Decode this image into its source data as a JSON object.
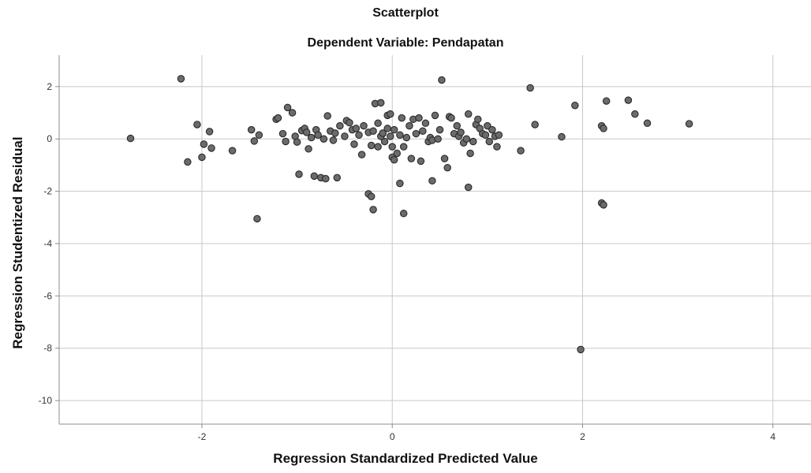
{
  "chart_data": {
    "type": "scatter",
    "title": "Scatterplot",
    "subtitle": "Dependent Variable: Pendapatan",
    "xlabel": "Regression Standardized Predicted Value",
    "ylabel": "Regression Studentized Residual",
    "xlim": [
      -3.5,
      4.4
    ],
    "ylim": [
      -10.9,
      3.2
    ],
    "xticks": [
      -2,
      0,
      2,
      4
    ],
    "yticks": [
      2,
      0,
      -2,
      -4,
      -6,
      -8,
      -10
    ],
    "xtick_labels": [
      "-2",
      "0",
      "2",
      "4"
    ],
    "ytick_labels": [
      "2",
      "0",
      "-2",
      "-4",
      "-6",
      "-8",
      "-10"
    ],
    "grid": true,
    "colors": {
      "marker_fill": "#6b6b6b",
      "marker_edge": "#2a2a2a",
      "grid": "#c8c8c8",
      "axis": "#8c8c8c"
    },
    "points": [
      [
        -2.75,
        0.02
      ],
      [
        -2.22,
        2.3
      ],
      [
        -2.15,
        -0.88
      ],
      [
        -2.05,
        0.55
      ],
      [
        -2.0,
        -0.7
      ],
      [
        -1.98,
        -0.2
      ],
      [
        -1.92,
        0.28
      ],
      [
        -1.9,
        -0.35
      ],
      [
        -1.68,
        -0.45
      ],
      [
        -1.48,
        0.35
      ],
      [
        -1.45,
        -0.08
      ],
      [
        -1.4,
        0.15
      ],
      [
        -1.42,
        -3.05
      ],
      [
        -1.22,
        0.75
      ],
      [
        -1.2,
        0.8
      ],
      [
        -1.15,
        0.2
      ],
      [
        -1.12,
        -0.1
      ],
      [
        -1.1,
        1.2
      ],
      [
        -1.05,
        1.0
      ],
      [
        -1.02,
        0.1
      ],
      [
        -1.0,
        -0.12
      ],
      [
        -0.98,
        -1.35
      ],
      [
        -0.95,
        0.32
      ],
      [
        -0.92,
        0.4
      ],
      [
        -0.9,
        0.25
      ],
      [
        -0.88,
        -0.38
      ],
      [
        -0.85,
        0.05
      ],
      [
        -0.82,
        -1.42
      ],
      [
        -0.8,
        0.35
      ],
      [
        -0.78,
        0.15
      ],
      [
        -0.75,
        -1.48
      ],
      [
        -0.72,
        0.0
      ],
      [
        -0.7,
        -1.52
      ],
      [
        -0.68,
        0.88
      ],
      [
        -0.65,
        0.3
      ],
      [
        -0.62,
        -0.05
      ],
      [
        -0.6,
        0.22
      ],
      [
        -0.58,
        -1.48
      ],
      [
        -0.55,
        0.5
      ],
      [
        -0.5,
        0.1
      ],
      [
        -0.48,
        0.7
      ],
      [
        -0.45,
        0.62
      ],
      [
        -0.42,
        0.35
      ],
      [
        -0.4,
        -0.2
      ],
      [
        -0.38,
        0.4
      ],
      [
        -0.35,
        0.15
      ],
      [
        -0.32,
        -0.6
      ],
      [
        -0.3,
        0.5
      ],
      [
        -0.25,
        0.25
      ],
      [
        -0.22,
        -0.25
      ],
      [
        -0.2,
        0.3
      ],
      [
        -0.18,
        1.35
      ],
      [
        -0.15,
        0.6
      ],
      [
        -0.12,
        1.38
      ],
      [
        -0.1,
        0.2
      ],
      [
        -0.08,
        -0.1
      ],
      [
        -0.05,
        0.4
      ],
      [
        -0.02,
        0.1
      ],
      [
        0.0,
        -0.3
      ],
      [
        0.02,
        0.35
      ],
      [
        -0.25,
        -2.1
      ],
      [
        -0.22,
        -2.2
      ],
      [
        -0.2,
        -2.7
      ],
      [
        -0.15,
        -0.3
      ],
      [
        -0.12,
        0.1
      ],
      [
        -0.1,
        0.22
      ],
      [
        -0.05,
        0.9
      ],
      [
        -0.02,
        0.95
      ],
      [
        0.0,
        -0.7
      ],
      [
        0.02,
        -0.8
      ],
      [
        0.05,
        -0.55
      ],
      [
        0.08,
        0.15
      ],
      [
        0.1,
        0.8
      ],
      [
        0.12,
        -0.3
      ],
      [
        0.15,
        0.05
      ],
      [
        0.18,
        0.5
      ],
      [
        0.2,
        -0.75
      ],
      [
        0.22,
        0.75
      ],
      [
        0.25,
        0.2
      ],
      [
        0.28,
        0.8
      ],
      [
        0.3,
        -0.85
      ],
      [
        0.32,
        0.3
      ],
      [
        0.35,
        0.6
      ],
      [
        0.38,
        -0.1
      ],
      [
        0.4,
        0.05
      ],
      [
        0.42,
        -0.05
      ],
      [
        0.45,
        0.9
      ],
      [
        0.48,
        0.0
      ],
      [
        0.5,
        0.35
      ],
      [
        0.52,
        2.25
      ],
      [
        0.55,
        -0.75
      ],
      [
        0.58,
        -1.1
      ],
      [
        0.6,
        0.85
      ],
      [
        0.62,
        0.8
      ],
      [
        0.65,
        0.2
      ],
      [
        0.68,
        0.5
      ],
      [
        0.7,
        0.1
      ],
      [
        0.72,
        0.25
      ],
      [
        0.75,
        -0.15
      ],
      [
        0.78,
        0.0
      ],
      [
        0.8,
        0.95
      ],
      [
        0.82,
        -0.55
      ],
      [
        0.85,
        -0.1
      ],
      [
        0.88,
        0.55
      ],
      [
        0.9,
        0.75
      ],
      [
        0.92,
        0.4
      ],
      [
        0.95,
        0.2
      ],
      [
        0.98,
        0.15
      ],
      [
        1.0,
        0.5
      ],
      [
        1.02,
        -0.1
      ],
      [
        1.05,
        0.35
      ],
      [
        1.08,
        0.1
      ],
      [
        1.1,
        -0.3
      ],
      [
        1.12,
        0.15
      ],
      [
        0.08,
        -1.7
      ],
      [
        0.12,
        -2.85
      ],
      [
        0.42,
        -1.6
      ],
      [
        0.8,
        -1.85
      ],
      [
        1.35,
        -0.45
      ],
      [
        1.45,
        1.95
      ],
      [
        1.5,
        0.55
      ],
      [
        1.78,
        0.08
      ],
      [
        1.92,
        1.28
      ],
      [
        1.98,
        -8.05
      ],
      [
        2.2,
        0.5
      ],
      [
        2.22,
        0.4
      ],
      [
        2.2,
        -2.45
      ],
      [
        2.22,
        -2.52
      ],
      [
        2.25,
        1.45
      ],
      [
        2.48,
        1.48
      ],
      [
        2.55,
        0.95
      ],
      [
        2.68,
        0.6
      ],
      [
        3.12,
        0.58
      ]
    ]
  }
}
